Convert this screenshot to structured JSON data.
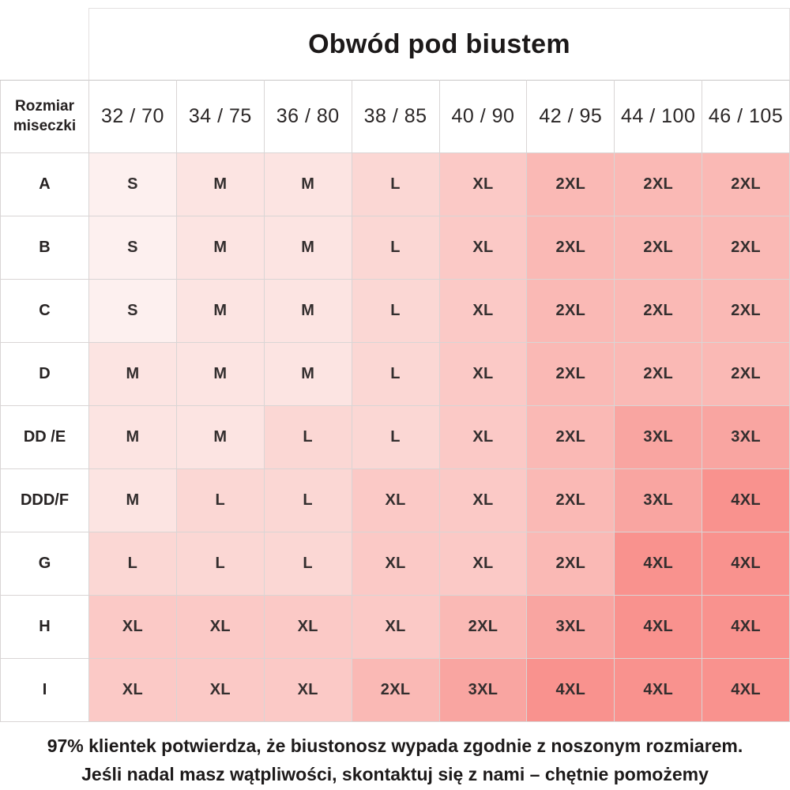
{
  "title": "Obwód pod biustem",
  "table": {
    "corner_label": "Rozmiar miseczki",
    "columns": [
      "32 / 70",
      "34 / 75",
      "36 / 80",
      "38 / 85",
      "40 / 90",
      "42 / 95",
      "44 / 100",
      "46 / 105"
    ],
    "rows": [
      {
        "label": "A",
        "values": [
          "S",
          "M",
          "M",
          "L",
          "XL",
          "2XL",
          "2XL",
          "2XL"
        ]
      },
      {
        "label": "B",
        "values": [
          "S",
          "M",
          "M",
          "L",
          "XL",
          "2XL",
          "2XL",
          "2XL"
        ]
      },
      {
        "label": "C",
        "values": [
          "S",
          "M",
          "M",
          "L",
          "XL",
          "2XL",
          "2XL",
          "2XL"
        ]
      },
      {
        "label": "D",
        "values": [
          "M",
          "M",
          "M",
          "L",
          "XL",
          "2XL",
          "2XL",
          "2XL"
        ]
      },
      {
        "label": "DD /E",
        "values": [
          "M",
          "M",
          "L",
          "L",
          "XL",
          "2XL",
          "3XL",
          "3XL"
        ]
      },
      {
        "label": "DDD/F",
        "values": [
          "M",
          "L",
          "L",
          "XL",
          "XL",
          "2XL",
          "3XL",
          "4XL"
        ]
      },
      {
        "label": "G",
        "values": [
          "L",
          "L",
          "L",
          "XL",
          "XL",
          "2XL",
          "4XL",
          "4XL"
        ]
      },
      {
        "label": "H",
        "values": [
          "XL",
          "XL",
          "XL",
          "XL",
          "2XL",
          "3XL",
          "4XL",
          "4XL"
        ]
      },
      {
        "label": "I",
        "values": [
          "XL",
          "XL",
          "XL",
          "2XL",
          "3XL",
          "4XL",
          "4XL",
          "4XL"
        ]
      }
    ]
  },
  "size_colors": {
    "S": "#fdf0ef",
    "M": "#fce4e2",
    "L": "#fbd7d4",
    "XL": "#fbc9c6",
    "2XL": "#fab9b5",
    "3XL": "#f9a5a1",
    "4XL": "#f9928e"
  },
  "footer": {
    "line1": "97% klientek potwierdza, że biustonosz wypada zgodnie z noszonym rozmiarem.",
    "line2": "Jeśli nadal masz wątpliwości, skontaktuj się z nami – chętnie pomożemy"
  }
}
